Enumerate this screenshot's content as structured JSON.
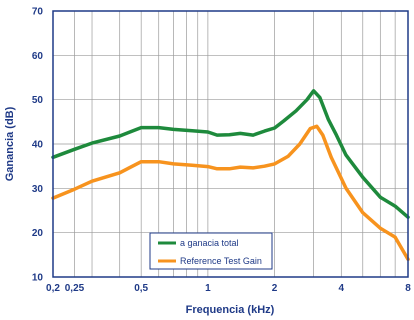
{
  "chart_data": {
    "type": "line",
    "xlabel": "Frequencia (kHz)",
    "ylabel": "Ganancia (dB)",
    "xscale": "log",
    "xlim": [
      0.2,
      8
    ],
    "ylim": [
      10,
      70
    ],
    "grid": true,
    "legend_placement": "bottom-center",
    "xticks": [
      {
        "value": 0.2,
        "label": "0,2"
      },
      {
        "value": 0.25,
        "label": "0,25"
      },
      {
        "value": 0.5,
        "label": "0,5"
      },
      {
        "value": 1,
        "label": "1"
      },
      {
        "value": 2,
        "label": "2"
      },
      {
        "value": 4,
        "label": "4"
      },
      {
        "value": 8,
        "label": "8"
      }
    ],
    "yticks": [
      {
        "value": 10,
        "label": "10"
      },
      {
        "value": 20,
        "label": "20"
      },
      {
        "value": 30,
        "label": "30"
      },
      {
        "value": 40,
        "label": "40"
      },
      {
        "value": 50,
        "label": "50"
      },
      {
        "value": 60,
        "label": "60"
      },
      {
        "value": 70,
        "label": "70"
      }
    ],
    "series": [
      {
        "name": "a ganacia total",
        "color": "#1e8a3c",
        "points": [
          [
            0.2,
            37
          ],
          [
            0.25,
            38.8
          ],
          [
            0.3,
            40.2
          ],
          [
            0.4,
            41.8
          ],
          [
            0.5,
            43.7
          ],
          [
            0.6,
            43.7
          ],
          [
            0.7,
            43.3
          ],
          [
            0.85,
            43
          ],
          [
            1,
            42.7
          ],
          [
            1.1,
            42
          ],
          [
            1.25,
            42.1
          ],
          [
            1.4,
            42.4
          ],
          [
            1.6,
            42
          ],
          [
            1.8,
            42.9
          ],
          [
            2,
            43.6
          ],
          [
            2.2,
            45.2
          ],
          [
            2.5,
            47.5
          ],
          [
            2.8,
            50
          ],
          [
            3.0,
            52
          ],
          [
            3.2,
            50.5
          ],
          [
            3.5,
            45.5
          ],
          [
            3.8,
            42
          ],
          [
            4.2,
            37.5
          ],
          [
            5,
            32.5
          ],
          [
            6,
            28
          ],
          [
            7,
            26
          ],
          [
            8,
            23.5
          ]
        ]
      },
      {
        "name": "Reference Test Gain",
        "color": "#f7931e",
        "points": [
          [
            0.2,
            27.8
          ],
          [
            0.25,
            29.8
          ],
          [
            0.3,
            31.6
          ],
          [
            0.4,
            33.5
          ],
          [
            0.5,
            36
          ],
          [
            0.6,
            36
          ],
          [
            0.7,
            35.5
          ],
          [
            0.85,
            35.2
          ],
          [
            1,
            34.9
          ],
          [
            1.1,
            34.4
          ],
          [
            1.25,
            34.4
          ],
          [
            1.4,
            34.8
          ],
          [
            1.6,
            34.6
          ],
          [
            1.8,
            35
          ],
          [
            2,
            35.5
          ],
          [
            2.3,
            37.2
          ],
          [
            2.6,
            40
          ],
          [
            2.9,
            43.5
          ],
          [
            3.1,
            44
          ],
          [
            3.3,
            42
          ],
          [
            3.6,
            37
          ],
          [
            4.2,
            30
          ],
          [
            5,
            24.5
          ],
          [
            6,
            21
          ],
          [
            7,
            19
          ],
          [
            8,
            14
          ]
        ]
      }
    ]
  }
}
